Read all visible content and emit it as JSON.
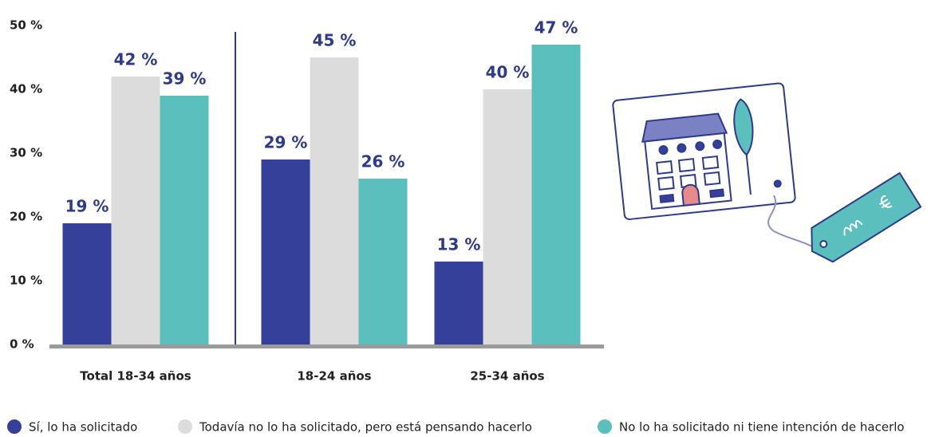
{
  "chart_data": {
    "type": "bar",
    "categories": [
      "Total 18-34 años",
      "18-24 años",
      "25-34 años"
    ],
    "series": [
      {
        "name": "Sí, lo ha solicitado",
        "color": "#35409a",
        "values": [
          19,
          29,
          13
        ],
        "value_labels": [
          "19 %",
          "29 %",
          "13 %"
        ]
      },
      {
        "name": "Todavía no lo ha solicitado, pero está pensando hacerlo",
        "color": "#dcdcdc",
        "values": [
          42,
          45,
          40
        ],
        "value_labels": [
          "42 %",
          "45 %",
          "40 %"
        ]
      },
      {
        "name": "No lo ha solicitado ni tiene intención de hacerlo",
        "color": "#5bbfbd",
        "values": [
          39,
          26,
          47
        ],
        "value_labels": [
          "39 %",
          "26 %",
          "47 %"
        ]
      }
    ],
    "ylim": [
      0,
      50
    ],
    "yticks": [
      {
        "value": 0,
        "label": "0 %"
      },
      {
        "value": 10,
        "label": "10 %"
      },
      {
        "value": 20,
        "label": "20 %"
      },
      {
        "value": 30,
        "label": "30 %"
      },
      {
        "value": 40,
        "label": "40 %"
      },
      {
        "value": 50,
        "label": "50 %"
      }
    ]
  }
}
